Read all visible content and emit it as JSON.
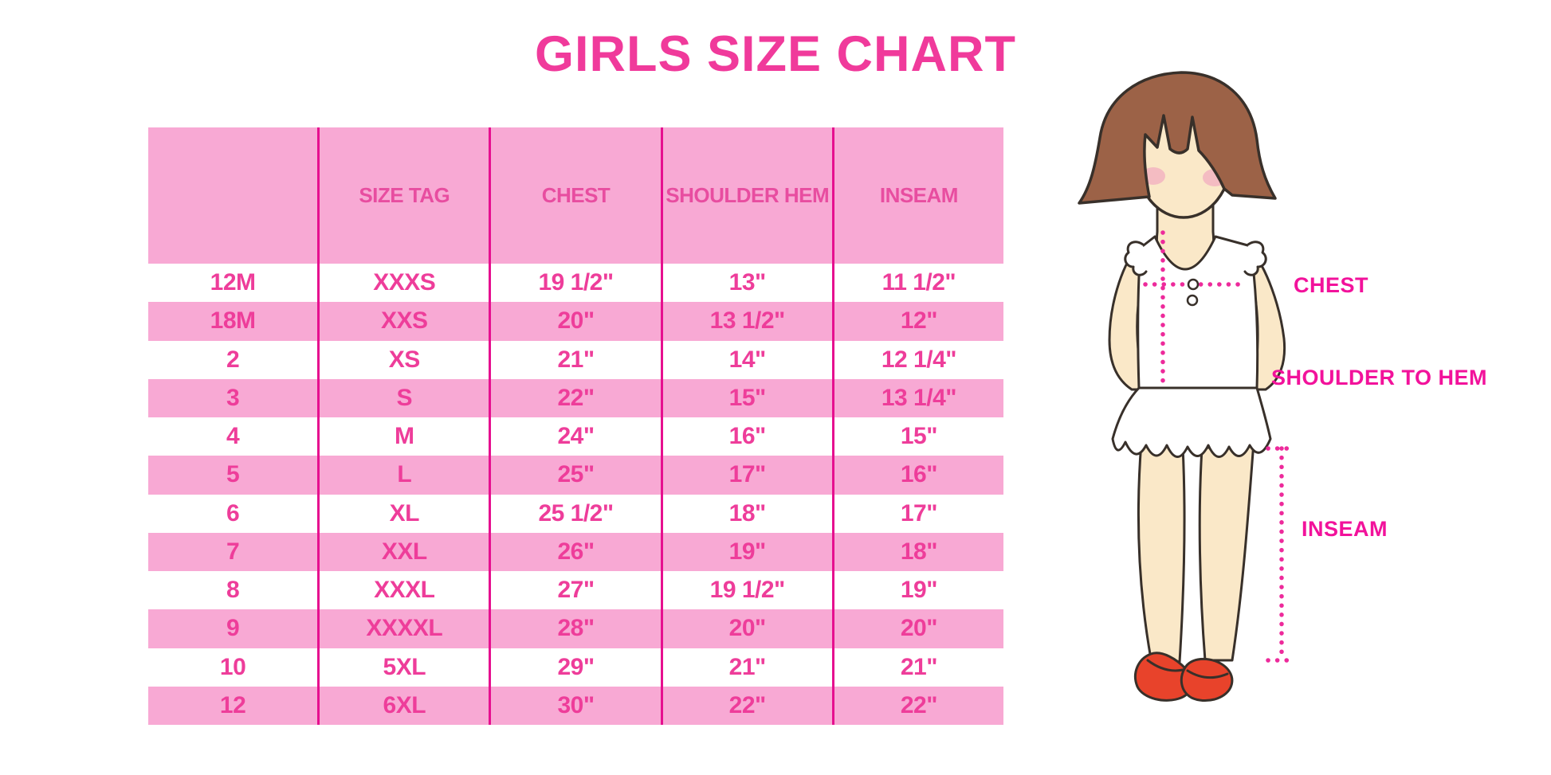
{
  "title": "GIRLS SIZE CHART",
  "chart_data": {
    "type": "table",
    "title": "GIRLS SIZE CHART",
    "columns": [
      "",
      "SIZE TAG",
      "CHEST",
      "SHOULDER HEM",
      "INSEAM"
    ],
    "rows": [
      [
        "12M",
        "XXXS",
        "19 1/2\"",
        "13\"",
        "11 1/2\""
      ],
      [
        "18M",
        "XXS",
        "20\"",
        "13 1/2\"",
        "12\""
      ],
      [
        "2",
        "XS",
        "21\"",
        "14\"",
        "12 1/4\""
      ],
      [
        "3",
        "S",
        "22\"",
        "15\"",
        "13 1/4\""
      ],
      [
        "4",
        "M",
        "24\"",
        "16\"",
        "15\""
      ],
      [
        "5",
        "L",
        "25\"",
        "17\"",
        "16\""
      ],
      [
        "6",
        "XL",
        "25 1/2\"",
        "18\"",
        "17\""
      ],
      [
        "7",
        "XXL",
        "26\"",
        "19\"",
        "18\""
      ],
      [
        "8",
        "XXXL",
        "27\"",
        "19 1/2\"",
        "19\""
      ],
      [
        "9",
        "XXXXL",
        "28\"",
        "20\"",
        "20\""
      ],
      [
        "10",
        "5XL",
        "29\"",
        "21\"",
        "21\""
      ],
      [
        "12",
        "6XL",
        "30\"",
        "22\"",
        "22\""
      ]
    ],
    "layout_hints": {
      "row_stripes": [
        "white",
        "pink"
      ],
      "header_background": "pink",
      "gridlines": "vertical-only"
    }
  },
  "figure": {
    "description": "cartoon girl with brown bob haircut, white ruffled sleeveless dress, red shoes, with dotted measurement guides",
    "labels": {
      "chest": "CHEST",
      "shoulder_to_hem": "SHOULDER TO HEM",
      "inseam": "INSEAM"
    }
  },
  "colors": {
    "title_color": "#f03a9b",
    "table_pink": "#f8a9d4",
    "table_line": "#e60f8f",
    "header_text": "#e84da0",
    "cell_text": "#ee3d9a",
    "label_magenta": "#f2129b",
    "dotted_line": "#ed2a9b",
    "hair_brown": "#9c6247",
    "outline_dark": "#38302a",
    "skin": "#fae8c8",
    "blush": "#f2aec0",
    "shoe_red": "#e8432b"
  }
}
